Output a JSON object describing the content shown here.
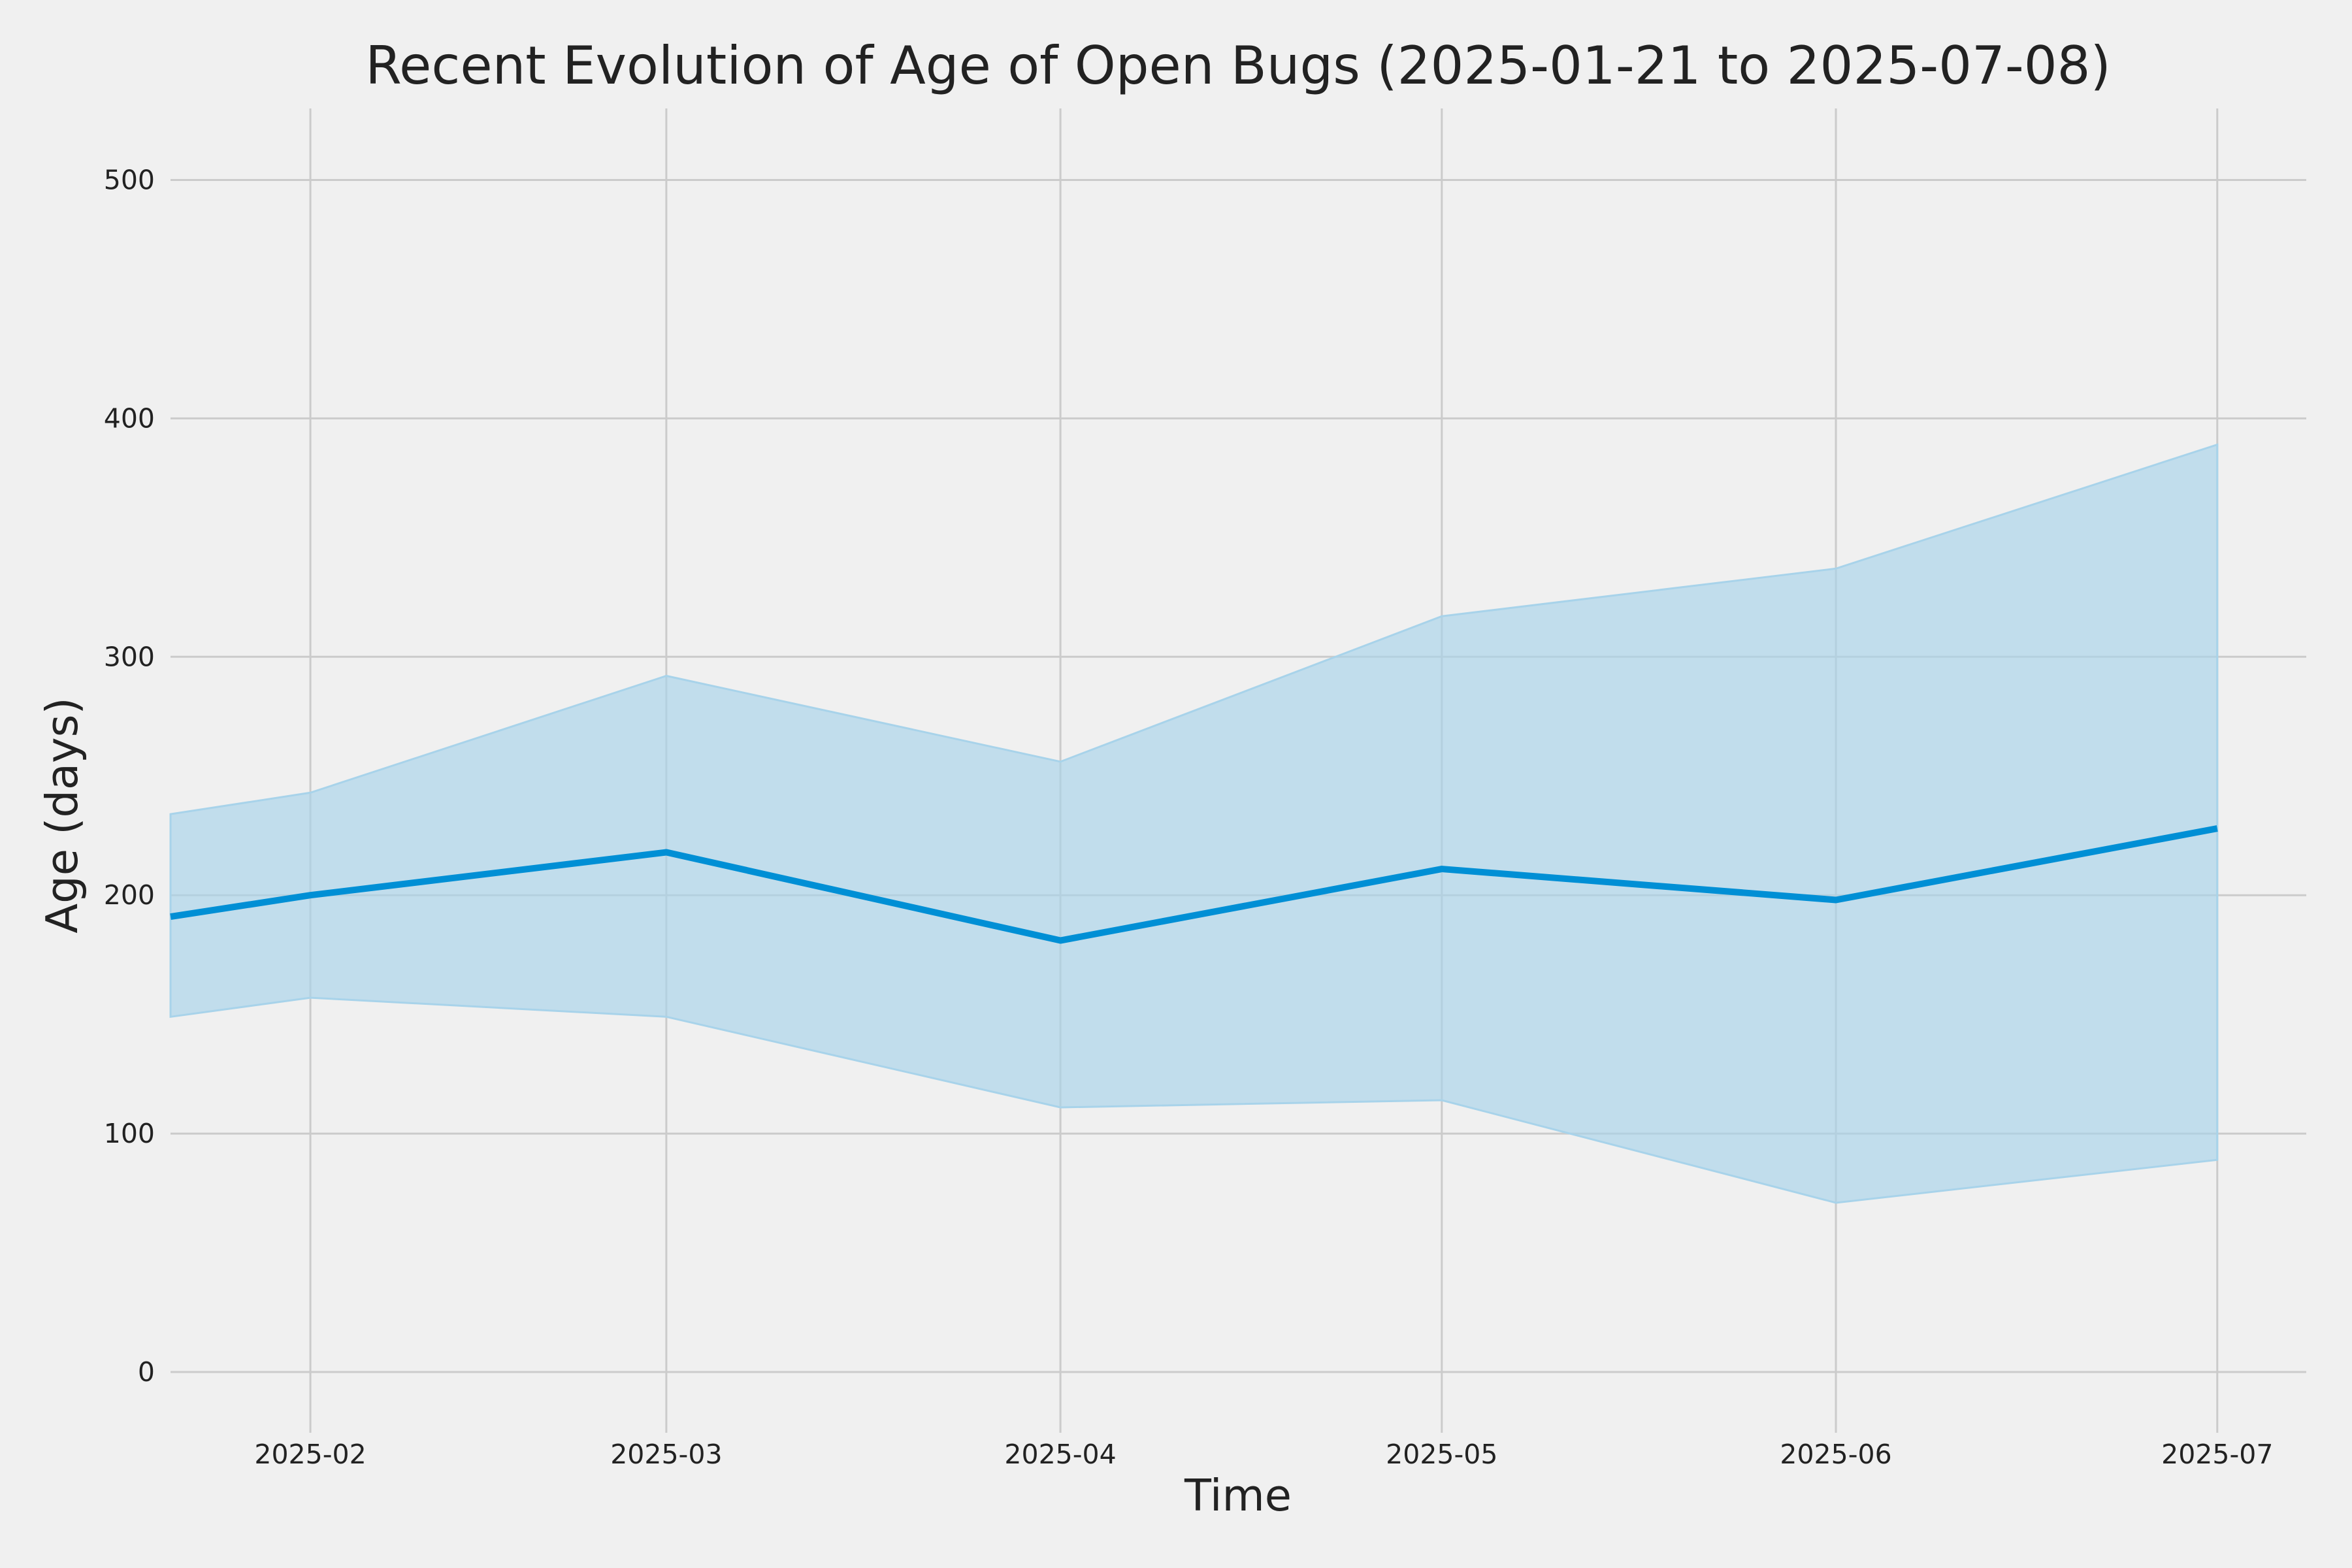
{
  "chart_data": {
    "type": "line",
    "title": "Recent Evolution of Age of Open Bugs (2025-01-21 to 2025-07-08)",
    "xlabel": "Time",
    "ylabel": "Age (days)",
    "x_tick_labels": [
      "2025-02",
      "2025-03",
      "2025-04",
      "2025-05",
      "2025-06",
      "2025-07"
    ],
    "y_tick_labels": [
      "0",
      "100",
      "200",
      "300",
      "400",
      "500"
    ],
    "x_ticks": [
      "2025-02-01",
      "2025-03-01",
      "2025-04-01",
      "2025-05-01",
      "2025-06-01",
      "2025-07-01"
    ],
    "y_ticks": [
      0,
      100,
      200,
      300,
      400,
      500
    ],
    "xlim": [
      "2025-01-21",
      "2025-07-08"
    ],
    "ylim": [
      -20,
      530
    ],
    "grid": true,
    "legend": "none",
    "x": [
      "2025-01-21",
      "2025-02-01",
      "2025-03-01",
      "2025-04-01",
      "2025-05-01",
      "2025-06-01",
      "2025-07-01"
    ],
    "series": [
      {
        "values": [
          191,
          200,
          218,
          181,
          211,
          198,
          228
        ],
        "band_lower": [
          149,
          157,
          149,
          111,
          114,
          71,
          89
        ],
        "band_upper": [
          234,
          243,
          292,
          256,
          317,
          337,
          389
        ]
      }
    ],
    "colors": {
      "line": "#008fd5",
      "band": "#a8d3ea",
      "grid": "#cbcbcb",
      "background": "#f0f0f0",
      "text": "#222222"
    }
  }
}
